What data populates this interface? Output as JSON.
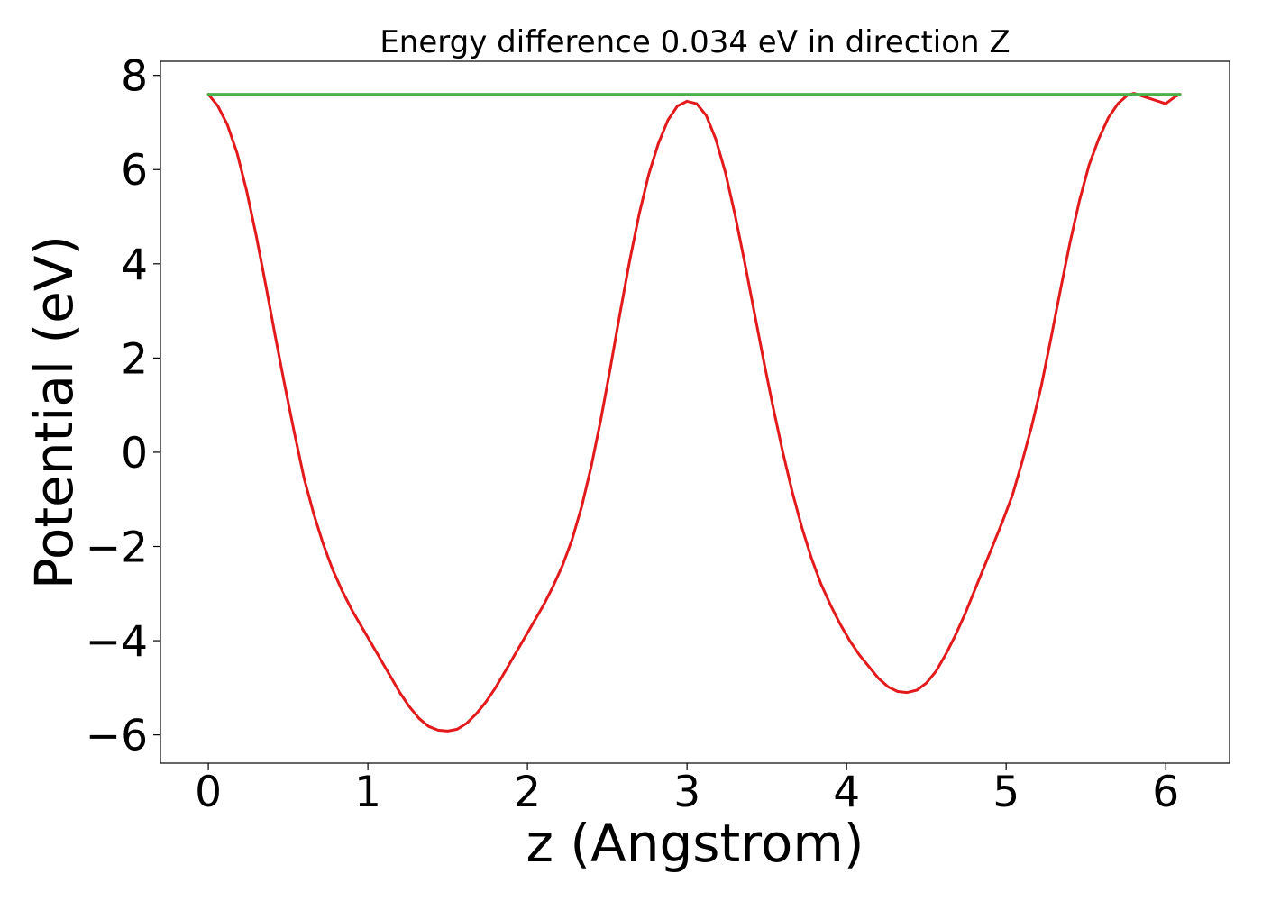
{
  "chart_data": {
    "type": "line",
    "title": "Energy difference 0.034 eV in direction Z",
    "xlabel": "z (Angstrom)",
    "ylabel": "Potential (eV)",
    "xlim": [
      -0.3,
      6.4
    ],
    "ylim": [
      -6.6,
      8.3
    ],
    "x_ticks": [
      0,
      1,
      2,
      3,
      4,
      5,
      6
    ],
    "x_tick_labels": [
      "0",
      "1",
      "2",
      "3",
      "4",
      "5",
      "6"
    ],
    "y_ticks": [
      -6,
      -4,
      -2,
      0,
      2,
      4,
      6,
      8
    ],
    "y_tick_labels": [
      "−6",
      "−4",
      "−2",
      "0",
      "2",
      "4",
      "6",
      "8"
    ],
    "grid": false,
    "legend": "none",
    "series": [
      {
        "color": "#e31a1c",
        "points": [
          [
            0.0,
            7.6
          ],
          [
            0.06,
            7.35
          ],
          [
            0.12,
            6.95
          ],
          [
            0.18,
            6.35
          ],
          [
            0.24,
            5.55
          ],
          [
            0.3,
            4.6
          ],
          [
            0.36,
            3.55
          ],
          [
            0.42,
            2.45
          ],
          [
            0.48,
            1.4
          ],
          [
            0.54,
            0.4
          ],
          [
            0.6,
            -0.55
          ],
          [
            0.66,
            -1.3
          ],
          [
            0.72,
            -1.95
          ],
          [
            0.78,
            -2.5
          ],
          [
            0.84,
            -2.95
          ],
          [
            0.9,
            -3.35
          ],
          [
            0.96,
            -3.7
          ],
          [
            1.02,
            -4.05
          ],
          [
            1.08,
            -4.4
          ],
          [
            1.14,
            -4.75
          ],
          [
            1.2,
            -5.1
          ],
          [
            1.26,
            -5.4
          ],
          [
            1.32,
            -5.65
          ],
          [
            1.38,
            -5.82
          ],
          [
            1.44,
            -5.9
          ],
          [
            1.5,
            -5.92
          ],
          [
            1.56,
            -5.88
          ],
          [
            1.62,
            -5.75
          ],
          [
            1.68,
            -5.55
          ],
          [
            1.74,
            -5.3
          ],
          [
            1.8,
            -5.0
          ],
          [
            1.86,
            -4.65
          ],
          [
            1.92,
            -4.3
          ],
          [
            1.98,
            -3.95
          ],
          [
            2.04,
            -3.6
          ],
          [
            2.1,
            -3.25
          ],
          [
            2.16,
            -2.85
          ],
          [
            2.22,
            -2.4
          ],
          [
            2.28,
            -1.85
          ],
          [
            2.34,
            -1.15
          ],
          [
            2.4,
            -0.3
          ],
          [
            2.46,
            0.7
          ],
          [
            2.52,
            1.8
          ],
          [
            2.58,
            2.95
          ],
          [
            2.64,
            4.05
          ],
          [
            2.7,
            5.05
          ],
          [
            2.76,
            5.9
          ],
          [
            2.82,
            6.55
          ],
          [
            2.88,
            7.05
          ],
          [
            2.94,
            7.35
          ],
          [
            3.0,
            7.45
          ],
          [
            3.06,
            7.4
          ],
          [
            3.12,
            7.15
          ],
          [
            3.18,
            6.65
          ],
          [
            3.24,
            5.95
          ],
          [
            3.3,
            5.05
          ],
          [
            3.36,
            4.05
          ],
          [
            3.42,
            3.0
          ],
          [
            3.48,
            1.95
          ],
          [
            3.54,
            0.95
          ],
          [
            3.6,
            0.0
          ],
          [
            3.66,
            -0.85
          ],
          [
            3.72,
            -1.6
          ],
          [
            3.78,
            -2.25
          ],
          [
            3.84,
            -2.8
          ],
          [
            3.9,
            -3.25
          ],
          [
            3.96,
            -3.65
          ],
          [
            4.02,
            -4.0
          ],
          [
            4.08,
            -4.3
          ],
          [
            4.14,
            -4.55
          ],
          [
            4.2,
            -4.8
          ],
          [
            4.26,
            -4.98
          ],
          [
            4.32,
            -5.08
          ],
          [
            4.38,
            -5.1
          ],
          [
            4.44,
            -5.05
          ],
          [
            4.5,
            -4.9
          ],
          [
            4.56,
            -4.65
          ],
          [
            4.62,
            -4.3
          ],
          [
            4.68,
            -3.9
          ],
          [
            4.74,
            -3.45
          ],
          [
            4.8,
            -2.95
          ],
          [
            4.86,
            -2.45
          ],
          [
            4.92,
            -1.95
          ],
          [
            4.98,
            -1.45
          ],
          [
            5.04,
            -0.9
          ],
          [
            5.1,
            -0.2
          ],
          [
            5.16,
            0.55
          ],
          [
            5.22,
            1.4
          ],
          [
            5.28,
            2.4
          ],
          [
            5.34,
            3.45
          ],
          [
            5.4,
            4.45
          ],
          [
            5.46,
            5.35
          ],
          [
            5.52,
            6.1
          ],
          [
            5.58,
            6.65
          ],
          [
            5.64,
            7.1
          ],
          [
            5.7,
            7.4
          ],
          [
            5.76,
            7.58
          ],
          [
            5.8,
            7.62
          ],
          [
            6.0,
            7.4
          ],
          [
            6.06,
            7.55
          ],
          [
            6.09,
            7.6
          ]
        ]
      },
      {
        "color": "#4daf4a",
        "points": [
          [
            0.0,
            7.6
          ],
          [
            6.09,
            7.6
          ]
        ]
      }
    ]
  }
}
